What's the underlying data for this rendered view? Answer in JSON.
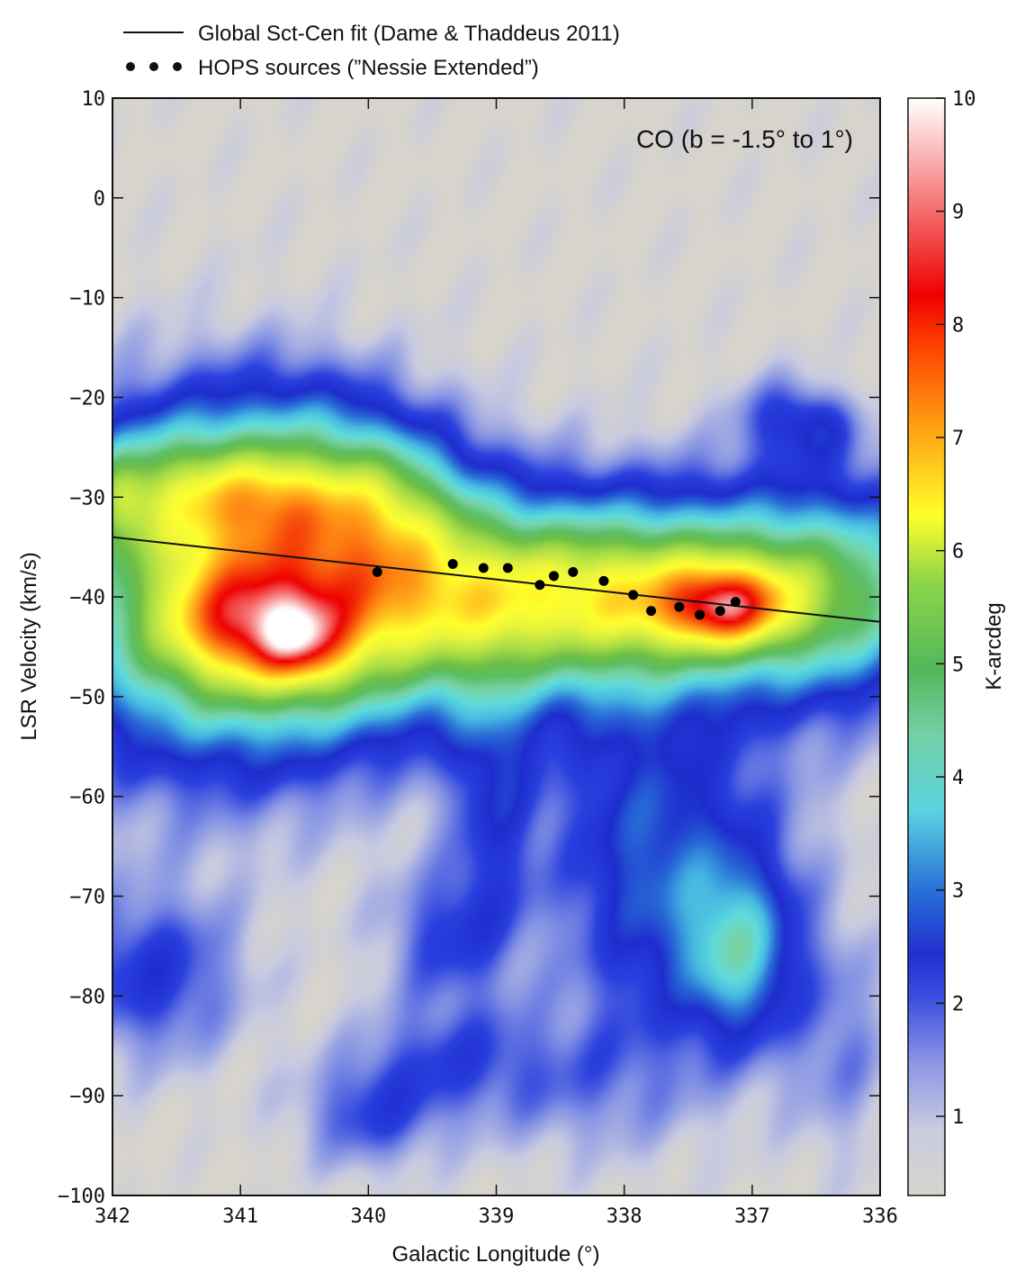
{
  "chart_data": {
    "type": "heatmap",
    "annotation": "CO (b = -1.5° to 1°)",
    "xlabel": "Galactic Longitude (°)",
    "ylabel": "LSR Velocity (km/s)",
    "colorbar_label": "K-arcdeg",
    "xlim": [
      342,
      336
    ],
    "ylim": [
      -100,
      10
    ],
    "x_ticks": [
      342,
      341,
      340,
      339,
      338,
      337,
      336
    ],
    "y_ticks": [
      10,
      0,
      -10,
      -20,
      -30,
      -40,
      -50,
      -60,
      -70,
      -80,
      -90,
      -100
    ],
    "colorbar_range": [
      0.3,
      10
    ],
    "colorbar_ticks": [
      1,
      2,
      3,
      4,
      5,
      6,
      7,
      8,
      9,
      10
    ],
    "legend": [
      {
        "type": "line",
        "label": "Global Sct-Cen fit (Dame & Thaddeus 2011)"
      },
      {
        "type": "dots",
        "label": "HOPS sources (”Nessie Extended”)"
      }
    ],
    "fit_line": {
      "name": "Global Sct-Cen fit (Dame & Thaddeus 2011)",
      "x": [
        342,
        336
      ],
      "y": [
        -34.0,
        -42.5
      ]
    },
    "hops_sources": {
      "name": "HOPS sources (”Nessie Extended”)",
      "points": [
        {
          "x": 339.93,
          "y": -37.5
        },
        {
          "x": 339.34,
          "y": -36.7
        },
        {
          "x": 339.1,
          "y": -37.1
        },
        {
          "x": 338.91,
          "y": -37.1
        },
        {
          "x": 338.66,
          "y": -38.8
        },
        {
          "x": 338.55,
          "y": -37.9
        },
        {
          "x": 338.4,
          "y": -37.5
        },
        {
          "x": 338.16,
          "y": -38.4
        },
        {
          "x": 337.93,
          "y": -39.8
        },
        {
          "x": 337.79,
          "y": -41.4
        },
        {
          "x": 337.57,
          "y": -41.0
        },
        {
          "x": 337.41,
          "y": -41.8
        },
        {
          "x": 337.25,
          "y": -41.4
        },
        {
          "x": 337.13,
          "y": -40.5
        }
      ]
    },
    "emission_features": [
      {
        "x": 341.3,
        "y": -40,
        "sx": 1.0,
        "sy": 12,
        "value": 4.2
      },
      {
        "x": 340.2,
        "y": -40,
        "sx": 0.9,
        "sy": 9,
        "value": 3.8
      },
      {
        "x": 339.0,
        "y": -40,
        "sx": 1.0,
        "sy": 7,
        "value": 3.2
      },
      {
        "x": 338.0,
        "y": -40,
        "sx": 0.9,
        "sy": 6,
        "value": 3.0
      },
      {
        "x": 337.0,
        "y": -39,
        "sx": 0.9,
        "sy": 7,
        "value": 2.8
      },
      {
        "x": 336.2,
        "y": -40,
        "sx": 0.6,
        "sy": 8,
        "value": 2.4
      },
      {
        "x": 341.6,
        "y": -29,
        "sx": 0.45,
        "sy": 4.5,
        "value": 2.4
      },
      {
        "x": 340.8,
        "y": -30,
        "sx": 0.4,
        "sy": 3.5,
        "value": 2.2
      },
      {
        "x": 339.9,
        "y": -30,
        "sx": 0.45,
        "sy": 5,
        "value": 2.4
      },
      {
        "x": 341.95,
        "y": -30,
        "sx": 0.15,
        "sy": 3,
        "value": 1.5
      },
      {
        "x": 341.0,
        "y": -43,
        "sx": 0.45,
        "sy": 4.5,
        "value": 2.5
      },
      {
        "x": 340.5,
        "y": -45,
        "sx": 0.25,
        "sy": 3,
        "value": 1.8
      },
      {
        "x": 337.2,
        "y": -41,
        "sx": 0.35,
        "sy": 3,
        "value": 3.5
      },
      {
        "x": 339.0,
        "y": -60,
        "sx": 0.25,
        "sy": 10,
        "value": 1.6
      },
      {
        "x": 338.0,
        "y": -65,
        "sx": 0.45,
        "sy": 14,
        "value": 1.5
      },
      {
        "x": 337.3,
        "y": -68,
        "sx": 0.55,
        "sy": 12,
        "value": 1.6
      },
      {
        "x": 337.1,
        "y": -76,
        "sx": 0.3,
        "sy": 6,
        "value": 2.4
      },
      {
        "x": 341.7,
        "y": -78,
        "sx": 0.5,
        "sy": 6,
        "value": 1.7
      },
      {
        "x": 339.4,
        "y": -74,
        "sx": 0.35,
        "sy": 5,
        "value": 1.4
      },
      {
        "x": 340.0,
        "y": -92,
        "sx": 0.4,
        "sy": 4,
        "value": 1.3
      },
      {
        "x": 339.4,
        "y": -86,
        "sx": 0.5,
        "sy": 4,
        "value": 1.0
      },
      {
        "x": 336.8,
        "y": -22,
        "sx": 0.25,
        "sy": 3,
        "value": 1.2
      },
      {
        "x": 336.45,
        "y": -23,
        "sx": 0.2,
        "sy": 2.5,
        "value": 1.1
      },
      {
        "x": 340.6,
        "y": -23,
        "sx": 0.6,
        "sy": 5,
        "value": 1.2
      },
      {
        "x": 336.3,
        "y": -85,
        "sx": 0.3,
        "sy": 8,
        "value": 0.9
      },
      {
        "x": 338.5,
        "y": -89,
        "sx": 0.7,
        "sy": 5,
        "value": 0.8
      }
    ]
  }
}
